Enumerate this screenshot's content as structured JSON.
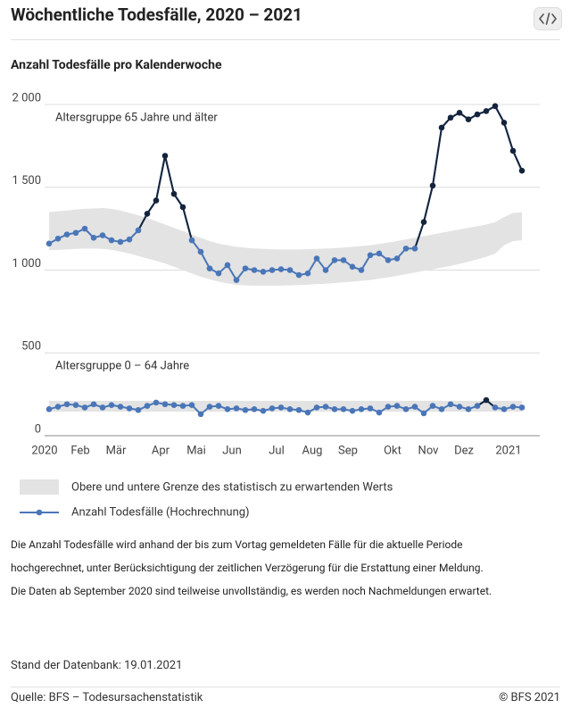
{
  "header": {
    "title": "Wöchentliche Todesfälle, 2020 – 2021"
  },
  "chart_data": {
    "type": "line",
    "title": "Anzahl Todesfälle pro Kalenderwoche",
    "categories": [
      "2020",
      null,
      null,
      null,
      "Feb",
      null,
      null,
      null,
      "Mär",
      null,
      null,
      null,
      null,
      "Apr",
      null,
      null,
      null,
      "Mai",
      null,
      null,
      null,
      "Jun",
      null,
      null,
      null,
      null,
      "Jul",
      null,
      null,
      null,
      "Aug",
      null,
      null,
      null,
      "Sep",
      null,
      null,
      null,
      null,
      "Okt",
      null,
      null,
      null,
      "Nov",
      null,
      null,
      null,
      "Dez",
      null,
      null,
      null,
      null,
      "2021",
      null
    ],
    "ylim": [
      0,
      2000
    ],
    "yticks": [
      {
        "value": 0,
        "label": "0"
      },
      {
        "value": 500,
        "label": "500"
      },
      {
        "value": 1000,
        "label": "1 000"
      },
      {
        "value": 1500,
        "label": "1 500"
      },
      {
        "value": 2000,
        "label": "2 000"
      }
    ],
    "grid": true,
    "color": "#4a76b8",
    "excess_color": "#14243d",
    "band_color": "#e3e3e3",
    "legend": {
      "band": "Obere und untere Grenze des statistisch zu erwartenden Werts",
      "line": "Anzahl Todesfälle (Hochrechnung)"
    },
    "groups": [
      {
        "label": "Altersgruppe 65 Jahre und älter",
        "values": [
          1160,
          1190,
          1215,
          1225,
          1250,
          1195,
          1210,
          1180,
          1170,
          1185,
          1240,
          1340,
          1420,
          1690,
          1460,
          1380,
          1180,
          1110,
          1010,
          980,
          1030,
          940,
          1010,
          1000,
          990,
          1000,
          1005,
          1000,
          970,
          980,
          1070,
          1000,
          1060,
          1060,
          1020,
          1000,
          1090,
          1100,
          1060,
          1070,
          1130,
          1130,
          1290,
          1510,
          1860,
          1920,
          1950,
          1910,
          1940,
          1960,
          1990,
          1890,
          1720,
          1600
        ],
        "upper": [
          1350,
          1355,
          1360,
          1365,
          1370,
          1372,
          1375,
          1370,
          1360,
          1345,
          1330,
          1315,
          1295,
          1275,
          1255,
          1235,
          1215,
          1195,
          1175,
          1160,
          1150,
          1140,
          1135,
          1130,
          1128,
          1126,
          1125,
          1125,
          1125,
          1126,
          1128,
          1130,
          1133,
          1136,
          1140,
          1145,
          1150,
          1158,
          1166,
          1175,
          1185,
          1195,
          1205,
          1215,
          1225,
          1235,
          1245,
          1255,
          1265,
          1275,
          1290,
          1320,
          1345,
          1350
        ],
        "lower": [
          1120,
          1122,
          1125,
          1128,
          1130,
          1130,
          1128,
          1122,
          1112,
          1100,
          1085,
          1070,
          1055,
          1040,
          1020,
          1000,
          980,
          960,
          945,
          930,
          920,
          912,
          908,
          906,
          905,
          905,
          906,
          908,
          910,
          912,
          915,
          918,
          922,
          926,
          930,
          935,
          940,
          948,
          956,
          965,
          975,
          985,
          995,
          1005,
          1015,
          1025,
          1038,
          1050,
          1065,
          1080,
          1100,
          1150,
          1175,
          1180
        ]
      },
      {
        "label": "Altersgruppe 0 – 64 Jahre",
        "values": [
          160,
          175,
          190,
          185,
          170,
          190,
          170,
          185,
          175,
          165,
          155,
          180,
          200,
          190,
          185,
          180,
          185,
          130,
          175,
          180,
          160,
          165,
          155,
          160,
          150,
          165,
          170,
          160,
          155,
          140,
          170,
          175,
          160,
          160,
          150,
          160,
          165,
          140,
          175,
          180,
          160,
          175,
          135,
          180,
          160,
          190,
          175,
          160,
          180,
          215,
          170,
          160,
          175,
          170
        ],
        "upper": [
          210,
          210,
          210,
          210,
          210,
          210,
          210,
          210,
          210,
          210,
          210,
          210,
          210,
          210,
          210,
          210,
          210,
          210,
          210,
          210,
          210,
          210,
          210,
          210,
          210,
          210,
          210,
          210,
          210,
          210,
          210,
          210,
          210,
          210,
          210,
          210,
          210,
          210,
          210,
          210,
          210,
          210,
          210,
          210,
          210,
          210,
          210,
          210,
          210,
          210,
          210,
          210,
          210,
          210
        ],
        "lower": [
          145,
          145,
          145,
          145,
          145,
          145,
          145,
          145,
          145,
          145,
          145,
          145,
          145,
          145,
          145,
          145,
          145,
          145,
          145,
          145,
          145,
          145,
          145,
          145,
          145,
          145,
          145,
          145,
          145,
          145,
          145,
          145,
          145,
          145,
          145,
          145,
          145,
          145,
          145,
          145,
          145,
          145,
          145,
          145,
          145,
          145,
          145,
          145,
          145,
          145,
          145,
          145,
          145,
          145
        ]
      }
    ]
  },
  "notes": [
    "Die Anzahl Todesfälle wird anhand der bis zum Vortag gemeldeten Fälle für die aktuelle Periode hochgerechnet, unter Berücksichtigung der zeitlichen Verzögerung für die Erstattung einer Meldung.",
    "Die Daten ab September 2020 sind teilweise unvollständig, es werden noch Nachmeldungen erwartet."
  ],
  "stand": "Stand der Datenbank: 19.01.2021",
  "footer": {
    "source": "Quelle: BFS – Todesursachenstatistik",
    "copyright": "© BFS 2021"
  }
}
